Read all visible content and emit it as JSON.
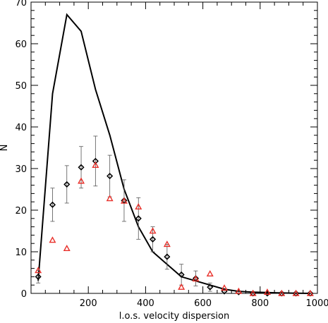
{
  "chart_data": {
    "type": "line",
    "title": "",
    "xlabel": "l.o.s. velocity dispersion",
    "ylabel": "N",
    "xlim": [
      0,
      1000
    ],
    "ylim": [
      0,
      70
    ],
    "x_ticks": [
      200,
      400,
      600,
      800,
      1000
    ],
    "y_ticks": [
      0,
      10,
      20,
      30,
      40,
      50,
      60,
      70
    ],
    "grid": false,
    "legend": "none",
    "series": [
      {
        "style": "line",
        "color": "#000000",
        "points": [
          [
            25,
            3
          ],
          [
            75,
            48
          ],
          [
            125,
            67
          ],
          [
            175,
            63
          ],
          [
            225,
            49
          ],
          [
            275,
            38
          ],
          [
            325,
            25
          ],
          [
            375,
            16
          ],
          [
            425,
            10
          ],
          [
            475,
            7
          ],
          [
            525,
            4
          ],
          [
            575,
            3
          ],
          [
            625,
            2
          ],
          [
            675,
            1
          ],
          [
            725,
            0.5
          ],
          [
            775,
            0.3
          ],
          [
            825,
            0.2
          ],
          [
            875,
            0.1
          ],
          [
            925,
            0.05
          ],
          [
            975,
            0
          ]
        ]
      },
      {
        "style": "diamond-errorbar",
        "color": "#000000",
        "points": [
          {
            "x": 25,
            "y": 4,
            "err": 1.5
          },
          {
            "x": 75,
            "y": 21.3,
            "err": 4
          },
          {
            "x": 125,
            "y": 26.2,
            "err": 4.5
          },
          {
            "x": 175,
            "y": 30.3,
            "err": 5
          },
          {
            "x": 225,
            "y": 31.8,
            "err": 6
          },
          {
            "x": 275,
            "y": 28.2,
            "err": 5
          },
          {
            "x": 325,
            "y": 22.3,
            "err": 5
          },
          {
            "x": 375,
            "y": 18,
            "err": 5
          },
          {
            "x": 425,
            "y": 13,
            "err": 3
          },
          {
            "x": 475,
            "y": 8.8,
            "err": 3
          },
          {
            "x": 525,
            "y": 4.5,
            "err": 2.5
          },
          {
            "x": 575,
            "y": 3.6,
            "err": 1.8
          },
          {
            "x": 625,
            "y": 1.5,
            "err": 1
          },
          {
            "x": 675,
            "y": 0.5,
            "err": 0.5
          },
          {
            "x": 725,
            "y": 0.3,
            "err": 0.3
          },
          {
            "x": 775,
            "y": 0,
            "err": 0
          },
          {
            "x": 825,
            "y": 0,
            "err": 0
          },
          {
            "x": 875,
            "y": 0,
            "err": 0
          },
          {
            "x": 925,
            "y": 0,
            "err": 0
          },
          {
            "x": 975,
            "y": 0,
            "err": 0
          }
        ]
      },
      {
        "style": "triangle",
        "color": "#e8302a",
        "points": [
          [
            25,
            5.5
          ],
          [
            75,
            12.8
          ],
          [
            125,
            10.8
          ],
          [
            175,
            27
          ],
          [
            225,
            30.8
          ],
          [
            275,
            22.8
          ],
          [
            325,
            22.2
          ],
          [
            375,
            20.8
          ],
          [
            425,
            15
          ],
          [
            475,
            11.8
          ],
          [
            525,
            1.5
          ],
          [
            575,
            3.5
          ],
          [
            625,
            4.7
          ],
          [
            675,
            1.3
          ],
          [
            725,
            0.5
          ],
          [
            775,
            0
          ],
          [
            825,
            0.3
          ],
          [
            875,
            0
          ],
          [
            925,
            0
          ],
          [
            975,
            0
          ]
        ]
      }
    ]
  }
}
